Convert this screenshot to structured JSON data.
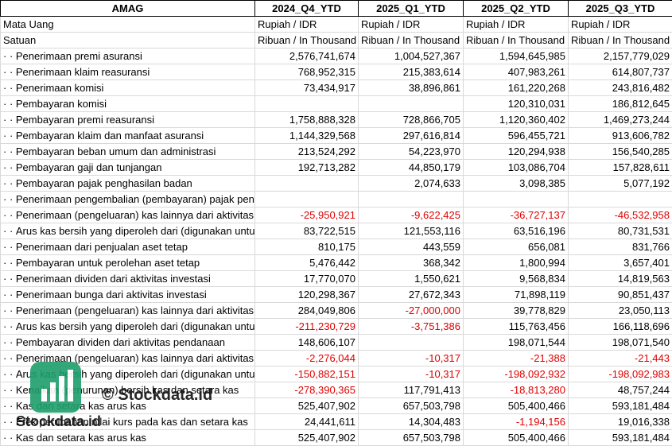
{
  "table": {
    "header": [
      "AMAG",
      "2024_Q4_YTD",
      "2025_Q1_YTD",
      "2025_Q2_YTD",
      "2025_Q3_YTD"
    ],
    "currency": [
      "Mata Uang",
      "Rupiah / IDR",
      "Rupiah / IDR",
      "Rupiah / IDR",
      "Rupiah / IDR"
    ],
    "unit": [
      "Satuan",
      "Ribuan / In Thousand",
      "Ribuan / In Thousand",
      "Ribuan / In Thousand",
      "Ribuan / In Thousand"
    ],
    "rows": [
      {
        "label": "Penerimaan premi asuransi",
        "values": [
          "2,576,741,674",
          "1,004,527,367",
          "1,594,645,985",
          "2,157,779,029"
        ]
      },
      {
        "label": "Penerimaan klaim reasuransi",
        "values": [
          "768,952,315",
          "215,383,614",
          "407,983,261",
          "614,807,737"
        ]
      },
      {
        "label": "Penerimaan komisi",
        "values": [
          "73,434,917",
          "38,896,861",
          "161,220,268",
          "243,816,482"
        ]
      },
      {
        "label": "Pembayaran komisi",
        "values": [
          null,
          null,
          "120,310,031",
          "186,812,645"
        ]
      },
      {
        "label": "Pembayaran premi reasuransi",
        "values": [
          "1,758,888,328",
          "728,866,705",
          "1,120,360,402",
          "1,469,273,244"
        ]
      },
      {
        "label": "Pembayaran klaim dan manfaat asuransi",
        "values": [
          "1,144,329,568",
          "297,616,814",
          "596,455,721",
          "913,606,782"
        ]
      },
      {
        "label": "Pembayaran beban umum dan administrasi",
        "values": [
          "213,524,292",
          "54,223,970",
          "120,294,938",
          "156,540,285"
        ]
      },
      {
        "label": "Pembayaran gaji dan tunjangan",
        "values": [
          "192,713,282",
          "44,850,179",
          "103,086,704",
          "157,828,611"
        ]
      },
      {
        "label": "Pembayaran pajak penghasilan badan",
        "values": [
          null,
          "2,074,633",
          "3,098,385",
          "5,077,192"
        ]
      },
      {
        "label": "Penerimaan pengembalian (pembayaran) pajak penghasilan dari aktivitas operasi",
        "values": [
          null,
          null,
          null,
          null
        ]
      },
      {
        "label": "Penerimaan (pengeluaran) kas lainnya dari aktivitas operasi",
        "values": [
          "-25,950,921",
          "-9,622,425",
          "-36,727,137",
          "-46,532,958"
        ]
      },
      {
        "label": "Arus kas bersih yang diperoleh dari (digunakan untuk) aktivitas operasi",
        "values": [
          "83,722,515",
          "121,553,116",
          "63,516,196",
          "80,731,531"
        ]
      },
      {
        "label": "Penerimaan dari penjualan aset tetap",
        "values": [
          "810,175",
          "443,559",
          "656,081",
          "831,766"
        ]
      },
      {
        "label": "Pembayaran untuk perolehan aset tetap",
        "values": [
          "5,476,442",
          "368,342",
          "1,800,994",
          "3,657,401"
        ]
      },
      {
        "label": "Penerimaan dividen dari aktivitas investasi",
        "values": [
          "17,770,070",
          "1,550,621",
          "9,568,834",
          "14,819,563"
        ]
      },
      {
        "label": "Penerimaan bunga dari aktivitas investasi",
        "values": [
          "120,298,367",
          "27,672,343",
          "71,898,119",
          "90,851,437"
        ]
      },
      {
        "label": "Penerimaan (pengeluaran) kas lainnya dari aktivitas investasi",
        "values": [
          "284,049,806",
          "-27,000,000",
          "39,778,829",
          "23,050,113"
        ]
      },
      {
        "label": "Arus kas bersih yang diperoleh dari (digunakan untuk) aktivitas investasi",
        "values": [
          "-211,230,729",
          "-3,751,386",
          "115,763,456",
          "166,118,696"
        ]
      },
      {
        "label": "Pembayaran dividen dari aktivitas pendanaan",
        "values": [
          "148,606,107",
          null,
          "198,071,544",
          "198,071,540"
        ]
      },
      {
        "label": "Penerimaan (pengeluaran) kas lainnya dari aktivitas pendanaan",
        "values": [
          "-2,276,044",
          "-10,317",
          "-21,388",
          "-21,443"
        ]
      },
      {
        "label": "Arus kas bersih yang diperoleh dari (digunakan untuk) aktivitas pendanaan",
        "values": [
          "-150,882,151",
          "-10,317",
          "-198,092,932",
          "-198,092,983"
        ]
      },
      {
        "label": "Kenaikan (penurunan) bersih kas dan setara kas",
        "values": [
          "-278,390,365",
          "117,791,413",
          "-18,813,280",
          "48,757,244"
        ]
      },
      {
        "label": "Kas dan setara kas arus kas",
        "values": [
          "525,407,902",
          "657,503,798",
          "505,400,466",
          "593,181,484"
        ]
      },
      {
        "label": "Efek perubahan nilai kurs pada kas dan setara kas",
        "values": [
          "24,441,611",
          "14,304,483",
          "-1,194,156",
          "19,016,338"
        ]
      },
      {
        "label": "Kas dan setara kas arus kas",
        "values": [
          "525,407,902",
          "657,503,798",
          "505,400,466",
          "593,181,484"
        ]
      }
    ]
  },
  "watermark": {
    "copyright": "© Stockdata.id",
    "logo": "Stockdata.id"
  }
}
